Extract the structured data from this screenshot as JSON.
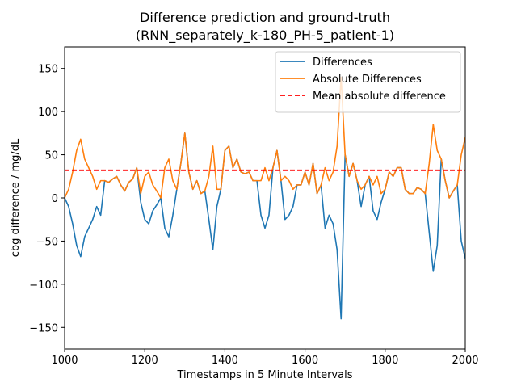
{
  "chart_data": {
    "type": "line",
    "title": "Difference prediction and ground-truth",
    "subtitle": "(RNN_separately_k-180_PH-5_patient-1)",
    "xlabel": "Timestamps in 5 Minute Intervals",
    "ylabel": "cbg difference / mg/dL",
    "xlim": [
      1000,
      2000
    ],
    "ylim": [
      -175,
      175
    ],
    "xticks": [
      1000,
      1200,
      1400,
      1600,
      1800,
      2000
    ],
    "yticks": [
      -150,
      -100,
      -50,
      0,
      50,
      100,
      150
    ],
    "grid": false,
    "legend_position": "top-right",
    "x": [
      1000,
      1010,
      1020,
      1030,
      1040,
      1050,
      1060,
      1070,
      1080,
      1090,
      1100,
      1110,
      1120,
      1130,
      1140,
      1150,
      1160,
      1170,
      1180,
      1190,
      1200,
      1210,
      1220,
      1230,
      1240,
      1250,
      1260,
      1270,
      1280,
      1290,
      1300,
      1310,
      1320,
      1330,
      1340,
      1350,
      1360,
      1370,
      1380,
      1390,
      1400,
      1410,
      1420,
      1430,
      1440,
      1450,
      1460,
      1470,
      1480,
      1490,
      1500,
      1510,
      1520,
      1530,
      1540,
      1550,
      1560,
      1570,
      1580,
      1590,
      1600,
      1610,
      1620,
      1630,
      1640,
      1650,
      1660,
      1670,
      1680,
      1690,
      1700,
      1710,
      1720,
      1730,
      1740,
      1750,
      1760,
      1770,
      1780,
      1790,
      1800,
      1810,
      1820,
      1830,
      1840,
      1850,
      1860,
      1870,
      1880,
      1890,
      1900,
      1910,
      1920,
      1930,
      1940,
      1950,
      1960,
      1970,
      1980,
      1990,
      2000
    ],
    "series": [
      {
        "name": "Differences",
        "color": "#1f77b4",
        "style": "solid",
        "values": [
          0,
          -10,
          -30,
          -55,
          -68,
          -45,
          -35,
          -25,
          -10,
          -20,
          20,
          18,
          22,
          25,
          15,
          8,
          18,
          22,
          35,
          -5,
          -25,
          -30,
          -15,
          -8,
          0,
          -35,
          -45,
          -20,
          10,
          40,
          75,
          30,
          10,
          20,
          5,
          8,
          -25,
          -60,
          -10,
          10,
          55,
          60,
          35,
          45,
          30,
          28,
          30,
          20,
          20,
          -20,
          -35,
          -20,
          35,
          55,
          20,
          -25,
          -20,
          -10,
          15,
          15,
          30,
          15,
          40,
          5,
          15,
          -35,
          -20,
          -30,
          -60,
          -140,
          50,
          25,
          40,
          20,
          -10,
          15,
          25,
          -15,
          -25,
          -5,
          10,
          30,
          25,
          35,
          35,
          10,
          5,
          5,
          12,
          10,
          5,
          -40,
          -85,
          -55,
          45,
          20,
          0,
          8,
          15,
          -50,
          -70
        ]
      },
      {
        "name": "Absolute Differences",
        "color": "#ff7f0e",
        "style": "solid",
        "values": [
          0,
          10,
          30,
          55,
          68,
          45,
          35,
          25,
          10,
          20,
          20,
          18,
          22,
          25,
          15,
          8,
          18,
          22,
          35,
          5,
          25,
          30,
          15,
          8,
          0,
          35,
          45,
          20,
          10,
          40,
          75,
          30,
          10,
          20,
          5,
          8,
          25,
          60,
          10,
          10,
          55,
          60,
          35,
          45,
          30,
          28,
          30,
          20,
          20,
          20,
          35,
          20,
          35,
          55,
          20,
          25,
          20,
          10,
          15,
          15,
          30,
          15,
          40,
          5,
          15,
          35,
          20,
          30,
          60,
          140,
          50,
          25,
          40,
          20,
          10,
          15,
          25,
          15,
          25,
          5,
          10,
          30,
          25,
          35,
          35,
          10,
          5,
          5,
          12,
          10,
          5,
          40,
          85,
          55,
          45,
          20,
          0,
          8,
          15,
          50,
          70
        ]
      },
      {
        "name": "Mean absolute difference",
        "color": "#ff0000",
        "style": "dashed",
        "constant": 32
      }
    ]
  }
}
